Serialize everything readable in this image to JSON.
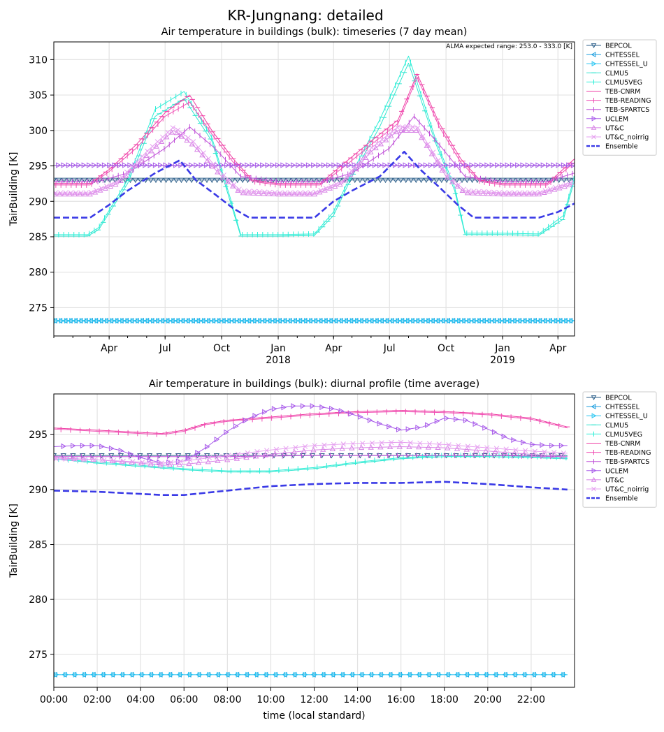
{
  "figure": {
    "suptitle": "KR-Jungnang: detailed"
  },
  "chart_data": [
    {
      "type": "line",
      "title": "Air temperature in buildings (bulk): timeseries (7 day mean)",
      "xlabel": "",
      "ylabel": "TairBuilding [K]",
      "annotation": "ALMA expected range: 253.0 - 333.0 [K]",
      "x_axis": "date",
      "xlim": [
        "2017-01-01",
        "2019-04-28"
      ],
      "ylim": [
        271,
        312.5
      ],
      "grid": true,
      "legend_placement": "outside-right",
      "xticks": [
        {
          "x": "2017-04-01",
          "label": "Apr"
        },
        {
          "x": "2017-07-01",
          "label": "Jul"
        },
        {
          "x": "2017-10-01",
          "label": "Oct"
        },
        {
          "x": "2018-01-01",
          "label": "Jan\n2018"
        },
        {
          "x": "2018-04-01",
          "label": "Apr"
        },
        {
          "x": "2018-07-01",
          "label": "Jul"
        },
        {
          "x": "2018-10-01",
          "label": "Oct"
        },
        {
          "x": "2019-01-01",
          "label": "Jan\n2019"
        },
        {
          "x": "2019-04-01",
          "label": "Apr"
        }
      ],
      "yticks": [
        275,
        280,
        285,
        290,
        295,
        300,
        305,
        310
      ],
      "series": [
        {
          "name": "BEPCOL",
          "color": "#2c5f8a",
          "marker": "tri_down",
          "x": [
            "2017-01-01",
            "2019-04-28"
          ],
          "y": [
            293.0,
            293.0
          ]
        },
        {
          "name": "CHTESSEL",
          "color": "#1f9fdf",
          "marker": "tri_left",
          "x": [
            "2017-01-01",
            "2019-04-28"
          ],
          "y": [
            273.15,
            273.15
          ]
        },
        {
          "name": "CHTESSEL_U",
          "color": "#29c6f2",
          "marker": "tri_right",
          "x": [
            "2017-01-01",
            "2019-04-28"
          ],
          "y": [
            273.15,
            273.15
          ]
        },
        {
          "name": "CLMU5",
          "color": "#33e6d0",
          "marker": "hline",
          "x": [
            "2017-01-01",
            "2017-02-25",
            "2017-03-15",
            "2017-05-01",
            "2017-06-15",
            "2017-08-01",
            "2017-09-15",
            "2017-10-15",
            "2017-11-01",
            "2018-01-01",
            "2018-03-01",
            "2018-04-01",
            "2018-05-01",
            "2018-06-15",
            "2018-08-01",
            "2018-09-15",
            "2018-10-15",
            "2018-11-01",
            "2019-01-01",
            "2019-03-01",
            "2019-04-10",
            "2019-04-28"
          ],
          "y": [
            285.1,
            285.1,
            286.0,
            292.5,
            302.0,
            304.5,
            298.5,
            290.0,
            285.1,
            285.1,
            285.2,
            288.0,
            293.5,
            300.5,
            309.5,
            298.0,
            291.5,
            285.3,
            285.3,
            285.2,
            287.5,
            293.0
          ]
        },
        {
          "name": "CLMU5VEG",
          "color": "#2fefd8",
          "marker": "vline",
          "x": [
            "2017-01-01",
            "2017-02-25",
            "2017-03-15",
            "2017-05-01",
            "2017-06-15",
            "2017-08-01",
            "2017-09-15",
            "2017-10-15",
            "2017-11-01",
            "2018-01-01",
            "2018-03-01",
            "2018-04-01",
            "2018-05-01",
            "2018-06-15",
            "2018-08-01",
            "2018-09-15",
            "2018-10-15",
            "2018-11-01",
            "2019-01-01",
            "2019-03-01",
            "2019-04-10",
            "2019-04-28"
          ],
          "y": [
            285.3,
            285.3,
            286.3,
            293.0,
            303.0,
            305.5,
            299.0,
            290.5,
            285.3,
            285.3,
            285.4,
            288.5,
            294.0,
            301.5,
            310.5,
            298.5,
            292.0,
            285.5,
            285.5,
            285.4,
            288.0,
            293.5
          ]
        },
        {
          "name": "TEB-CNRM",
          "color": "#ef3fa4",
          "marker": "hline",
          "x": [
            "2017-01-01",
            "2017-03-01",
            "2017-04-01",
            "2017-05-15",
            "2017-07-01",
            "2017-08-10",
            "2017-09-15",
            "2017-10-20",
            "2017-11-20",
            "2018-01-01",
            "2018-03-10",
            "2018-04-20",
            "2018-06-01",
            "2018-07-15",
            "2018-08-15",
            "2018-09-20",
            "2018-10-25",
            "2018-11-25",
            "2019-01-01",
            "2019-03-15",
            "2019-04-28"
          ],
          "y": [
            292.5,
            292.5,
            294.5,
            298.0,
            302.5,
            305.0,
            300.0,
            296.0,
            293.0,
            292.5,
            292.5,
            295.5,
            298.5,
            301.5,
            308.0,
            301.0,
            296.0,
            293.0,
            292.5,
            292.5,
            296.0
          ]
        },
        {
          "name": "TEB-READING",
          "color": "#f050b4",
          "marker": "vline",
          "x": [
            "2017-01-01",
            "2017-03-01",
            "2017-04-01",
            "2017-05-15",
            "2017-07-01",
            "2017-08-10",
            "2017-09-15",
            "2017-10-20",
            "2017-11-20",
            "2018-01-01",
            "2018-03-10",
            "2018-04-20",
            "2018-06-01",
            "2018-07-15",
            "2018-08-15",
            "2018-09-20",
            "2018-10-25",
            "2018-11-25",
            "2019-01-01",
            "2019-03-15",
            "2019-04-28"
          ],
          "y": [
            292.3,
            292.3,
            294.2,
            297.5,
            302.0,
            304.0,
            299.5,
            295.5,
            292.8,
            292.3,
            292.3,
            295.0,
            298.0,
            301.0,
            307.5,
            300.5,
            295.5,
            292.8,
            292.3,
            292.3,
            295.5
          ]
        },
        {
          "name": "TEB-SPARTCS",
          "color": "#c050d8",
          "marker": "vline",
          "x": [
            "2017-01-01",
            "2017-03-15",
            "2017-05-01",
            "2017-07-01",
            "2017-08-10",
            "2017-09-20",
            "2017-11-01",
            "2018-01-01",
            "2018-03-15",
            "2018-05-01",
            "2018-07-01",
            "2018-08-10",
            "2018-09-20",
            "2018-11-01",
            "2019-01-01",
            "2019-03-15",
            "2019-04-28"
          ],
          "y": [
            292.8,
            292.8,
            294.0,
            297.5,
            300.5,
            297.5,
            293.5,
            292.8,
            292.8,
            294.0,
            297.5,
            302.0,
            298.0,
            293.5,
            292.8,
            292.8,
            294.0
          ]
        },
        {
          "name": "UCLEM",
          "color": "#a85bea",
          "marker": "tri_right",
          "x": [
            "2017-01-01",
            "2019-04-28"
          ],
          "y": [
            295.1,
            295.1
          ]
        },
        {
          "name": "UT&C",
          "color": "#d884e6",
          "marker": "tri_up",
          "x": [
            "2017-01-01",
            "2017-03-01",
            "2017-04-15",
            "2017-06-01",
            "2017-07-15",
            "2017-08-15",
            "2017-10-01",
            "2017-11-01",
            "2018-01-01",
            "2018-03-01",
            "2018-04-15",
            "2018-06-01",
            "2018-07-15",
            "2018-08-15",
            "2018-10-01",
            "2018-11-01",
            "2019-01-01",
            "2019-03-01",
            "2019-04-28"
          ],
          "y": [
            291.0,
            291.0,
            292.5,
            296.5,
            300.0,
            298.0,
            293.5,
            291.2,
            291.0,
            291.0,
            292.5,
            297.0,
            300.0,
            300.0,
            293.5,
            291.2,
            291.0,
            291.0,
            292.5
          ]
        },
        {
          "name": "UT&C_noirrig",
          "color": "#e6a0f0",
          "marker": "x",
          "x": [
            "2017-01-01",
            "2017-03-01",
            "2017-04-15",
            "2017-06-01",
            "2017-07-15",
            "2017-08-15",
            "2017-10-01",
            "2017-11-01",
            "2018-01-01",
            "2018-03-01",
            "2018-04-15",
            "2018-06-01",
            "2018-07-15",
            "2018-08-15",
            "2018-10-01",
            "2018-11-01",
            "2019-01-01",
            "2019-03-01",
            "2019-04-28"
          ],
          "y": [
            291.2,
            291.2,
            292.8,
            297.0,
            300.5,
            298.5,
            294.0,
            291.5,
            291.2,
            291.2,
            292.8,
            297.5,
            300.5,
            300.5,
            294.0,
            291.5,
            291.2,
            291.2,
            292.8
          ]
        },
        {
          "name": "Ensemble",
          "color": "#3a3ae6",
          "marker": "dashed",
          "x": [
            "2017-01-01",
            "2017-03-01",
            "2017-04-01",
            "2017-05-01",
            "2017-06-15",
            "2017-07-25",
            "2017-08-20",
            "2017-09-20",
            "2017-10-20",
            "2017-11-15",
            "2018-01-01",
            "2018-03-01",
            "2018-04-01",
            "2018-05-01",
            "2018-06-15",
            "2018-07-25",
            "2018-08-20",
            "2018-09-20",
            "2018-10-20",
            "2018-11-15",
            "2019-01-01",
            "2019-03-01",
            "2019-04-01",
            "2019-04-28"
          ],
          "y": [
            287.7,
            287.7,
            289.5,
            291.5,
            294.0,
            295.8,
            293.0,
            291.0,
            289.0,
            287.7,
            287.7,
            287.7,
            290.0,
            291.5,
            293.5,
            297.0,
            294.5,
            292.0,
            289.5,
            287.7,
            287.7,
            287.7,
            288.5,
            289.7
          ]
        }
      ]
    },
    {
      "type": "line",
      "title": "Air temperature in buildings (bulk): diurnal profile (time average)",
      "xlabel": "time (local standard)",
      "ylabel": "TairBuilding [K]",
      "xlim": [
        0,
        24
      ],
      "ylim": [
        272,
        298.7
      ],
      "grid": true,
      "legend_placement": "outside-right",
      "xticks": [
        {
          "x": 0,
          "label": "00:00"
        },
        {
          "x": 2,
          "label": "02:00"
        },
        {
          "x": 4,
          "label": "04:00"
        },
        {
          "x": 6,
          "label": "06:00"
        },
        {
          "x": 8,
          "label": "08:00"
        },
        {
          "x": 10,
          "label": "10:00"
        },
        {
          "x": 12,
          "label": "12:00"
        },
        {
          "x": 14,
          "label": "14:00"
        },
        {
          "x": 16,
          "label": "16:00"
        },
        {
          "x": 18,
          "label": "18:00"
        },
        {
          "x": 20,
          "label": "20:00"
        },
        {
          "x": 22,
          "label": "22:00"
        }
      ],
      "yticks": [
        275,
        280,
        285,
        290,
        295
      ],
      "series": [
        {
          "name": "BEPCOL",
          "color": "#2c5f8a",
          "marker": "tri_down",
          "x": [
            0,
            23.67
          ],
          "y": [
            293.1,
            293.1
          ]
        },
        {
          "name": "CHTESSEL",
          "color": "#1f9fdf",
          "marker": "tri_left",
          "x": [
            0,
            23.67
          ],
          "y": [
            273.15,
            273.15
          ]
        },
        {
          "name": "CHTESSEL_U",
          "color": "#29c6f2",
          "marker": "tri_right",
          "x": [
            0,
            23.67
          ],
          "y": [
            273.15,
            273.15
          ]
        },
        {
          "name": "CLMU5",
          "color": "#33e6d0",
          "marker": "hline",
          "x": [
            0,
            2,
            4,
            6,
            8,
            10,
            12,
            14,
            16,
            18,
            20,
            22,
            23.67
          ],
          "y": [
            292.8,
            292.4,
            292.1,
            291.8,
            291.6,
            291.6,
            291.9,
            292.4,
            292.8,
            293.0,
            293.0,
            292.9,
            292.8
          ]
        },
        {
          "name": "CLMU5VEG",
          "color": "#2fefd8",
          "marker": "vline",
          "x": [
            0,
            2,
            4,
            6,
            8,
            10,
            12,
            14,
            16,
            18,
            20,
            22,
            23.67
          ],
          "y": [
            292.8,
            292.5,
            292.2,
            291.9,
            291.7,
            291.7,
            292.0,
            292.5,
            292.9,
            293.1,
            293.1,
            293.0,
            292.9
          ]
        },
        {
          "name": "TEB-CNRM",
          "color": "#ef3fa4",
          "marker": "hline",
          "x": [
            0,
            2,
            4,
            5,
            6,
            7,
            8,
            10,
            12,
            14,
            16,
            18,
            20,
            22,
            23.67
          ],
          "y": [
            295.6,
            295.4,
            295.2,
            295.1,
            295.4,
            296.0,
            296.3,
            296.6,
            296.9,
            297.1,
            297.2,
            297.1,
            296.9,
            296.5,
            295.7
          ]
        },
        {
          "name": "TEB-READING",
          "color": "#f050b4",
          "marker": "vline",
          "x": [
            0,
            2,
            4,
            5,
            6,
            7,
            8,
            10,
            12,
            14,
            16,
            18,
            20,
            22,
            23.67
          ],
          "y": [
            295.5,
            295.3,
            295.1,
            295.0,
            295.3,
            295.9,
            296.2,
            296.5,
            296.8,
            297.0,
            297.1,
            297.0,
            296.8,
            296.4,
            295.6
          ]
        },
        {
          "name": "TEB-SPARTCS",
          "color": "#c050d8",
          "marker": "vline",
          "x": [
            0,
            4,
            8,
            12,
            16,
            20,
            23.67
          ],
          "y": [
            293.0,
            293.0,
            293.0,
            293.1,
            293.1,
            293.1,
            293.0
          ]
        },
        {
          "name": "UCLEM",
          "color": "#a85bea",
          "marker": "tri_right",
          "x": [
            0,
            1,
            2,
            3,
            4,
            5,
            6,
            7,
            8,
            9,
            10,
            11,
            12,
            13,
            14,
            15,
            16,
            17,
            18,
            19,
            20,
            21,
            22,
            23,
            23.67
          ],
          "y": [
            293.9,
            294.0,
            294.0,
            293.6,
            292.9,
            292.4,
            292.6,
            293.8,
            295.3,
            296.5,
            297.3,
            297.6,
            297.6,
            297.3,
            296.7,
            296.0,
            295.4,
            295.7,
            296.5,
            296.3,
            295.5,
            294.6,
            294.1,
            294.0,
            294.0
          ]
        },
        {
          "name": "UT&C",
          "color": "#d884e6",
          "marker": "tri_up",
          "x": [
            0,
            2,
            4,
            5,
            6,
            8,
            10,
            12,
            14,
            16,
            18,
            20,
            22,
            23.67
          ],
          "y": [
            292.9,
            292.7,
            292.4,
            292.2,
            292.3,
            292.7,
            293.2,
            293.6,
            293.8,
            293.9,
            293.8,
            293.5,
            293.2,
            293.0
          ]
        },
        {
          "name": "UT&C_noirrig",
          "color": "#e6a0f0",
          "marker": "x",
          "x": [
            0,
            2,
            4,
            5,
            6,
            8,
            10,
            12,
            14,
            16,
            18,
            20,
            22,
            23.67
          ],
          "y": [
            292.8,
            292.7,
            292.5,
            292.4,
            292.6,
            293.1,
            293.6,
            294.0,
            294.2,
            294.3,
            294.1,
            293.8,
            293.5,
            293.3
          ]
        },
        {
          "name": "Ensemble",
          "color": "#3a3ae6",
          "marker": "dashed",
          "x": [
            0,
            2,
            4,
            5,
            6,
            8,
            10,
            12,
            14,
            16,
            18,
            20,
            22,
            23.67
          ],
          "y": [
            289.9,
            289.8,
            289.6,
            289.5,
            289.5,
            289.9,
            290.3,
            290.5,
            290.6,
            290.6,
            290.7,
            290.5,
            290.2,
            290.0
          ]
        }
      ]
    }
  ]
}
